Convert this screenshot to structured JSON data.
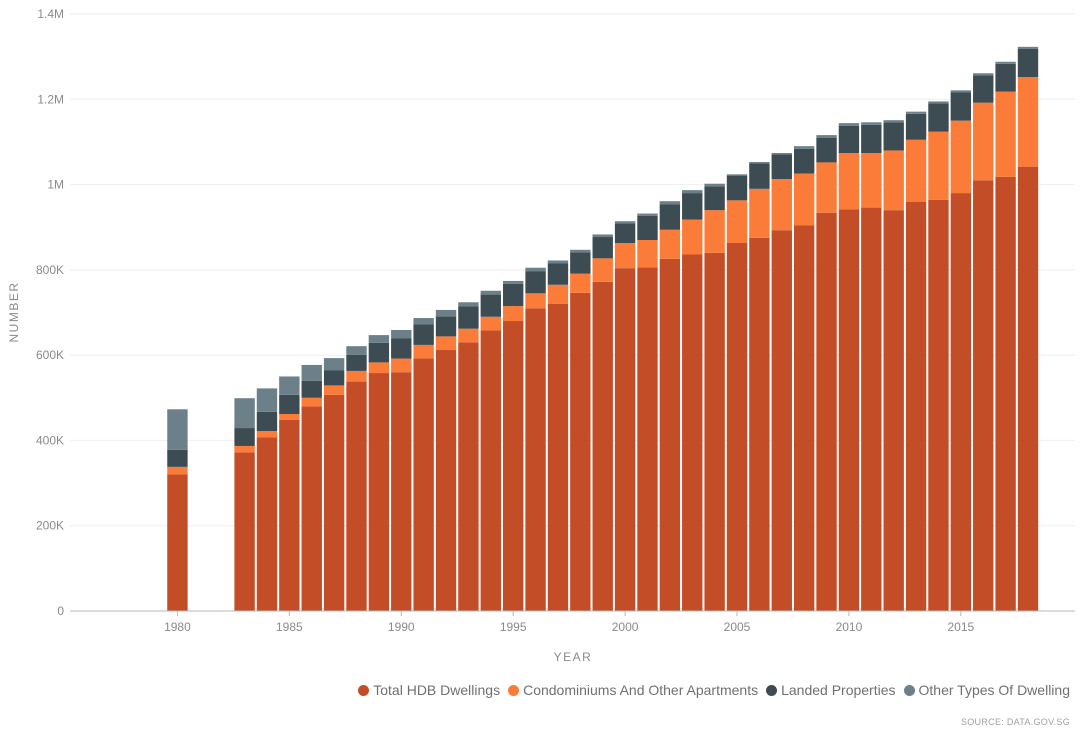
{
  "chart_data": {
    "type": "bar",
    "stacked": true,
    "title": "",
    "xlabel": "YEAR",
    "ylabel": "NUMBER",
    "ylim": [
      0,
      1400000
    ],
    "yticks": [
      0,
      200000,
      400000,
      600000,
      800000,
      1000000,
      1200000,
      1400000
    ],
    "ytick_labels": [
      "0",
      "200K",
      "400K",
      "600K",
      "800K",
      "1M",
      "1.2M",
      "1.4M"
    ],
    "xlim": [
      1975.2,
      2020.1
    ],
    "xticks": [
      1980,
      1985,
      1990,
      1995,
      2000,
      2005,
      2010,
      2015
    ],
    "xtick_labels": [
      "1980",
      "1985",
      "1990",
      "1995",
      "2000",
      "2005",
      "2010",
      "2015"
    ],
    "categories": [
      1980,
      1983,
      1984,
      1985,
      1986,
      1987,
      1988,
      1989,
      1990,
      1991,
      1992,
      1993,
      1994,
      1995,
      1996,
      1997,
      1998,
      1999,
      2000,
      2001,
      2002,
      2003,
      2004,
      2005,
      2006,
      2007,
      2008,
      2009,
      2010,
      2011,
      2012,
      2013,
      2014,
      2015,
      2016,
      2017,
      2018
    ],
    "series": [
      {
        "name": "Total HDB Dwellings",
        "color": "#c34d27",
        "values": [
          320000,
          372000,
          407000,
          448000,
          480000,
          507000,
          538000,
          558000,
          560000,
          592000,
          612000,
          630000,
          658000,
          680000,
          710000,
          720000,
          746000,
          772000,
          804000,
          806000,
          826000,
          836000,
          840000,
          863000,
          875000,
          893000,
          904000,
          934000,
          942000,
          946000,
          940000,
          960000,
          964000,
          980000,
          1010000,
          1018000,
          1042000
        ]
      },
      {
        "name": "Condominiums And Other Apartments",
        "color": "#fb7c38",
        "values": [
          18000,
          15000,
          15000,
          14000,
          20000,
          22000,
          25000,
          25000,
          32000,
          32000,
          32000,
          32000,
          32000,
          35000,
          35000,
          45000,
          45000,
          55000,
          59000,
          64000,
          68000,
          82000,
          100000,
          100000,
          115000,
          120000,
          122000,
          118000,
          132000,
          128000,
          140000,
          145000,
          160000,
          170000,
          182000,
          200000,
          210000
        ]
      },
      {
        "name": "Landed Properties",
        "color": "#3d4c52",
        "values": [
          40000,
          42000,
          45000,
          45000,
          40000,
          35000,
          38000,
          46000,
          47000,
          48000,
          47000,
          52000,
          52000,
          52000,
          52000,
          50000,
          50000,
          50000,
          46000,
          57000,
          60000,
          62000,
          56000,
          58000,
          60000,
          58000,
          58000,
          58000,
          64000,
          66000,
          66000,
          61000,
          66000,
          66000,
          64000,
          65000,
          66000
        ]
      },
      {
        "name": "Other Types Of Dwelling",
        "color": "#6b8088",
        "values": [
          95000,
          70000,
          55000,
          43000,
          37000,
          29000,
          20000,
          18000,
          20000,
          15000,
          15000,
          10000,
          9000,
          7000,
          8000,
          7000,
          6000,
          6000,
          5000,
          5000,
          7000,
          7000,
          6000,
          3000,
          3000,
          3000,
          6000,
          6000,
          6000,
          6000,
          5000,
          5000,
          5000,
          5000,
          5000,
          5000,
          5000
        ]
      }
    ]
  },
  "source_text": "SOURCE: DATA.GOV.SG"
}
